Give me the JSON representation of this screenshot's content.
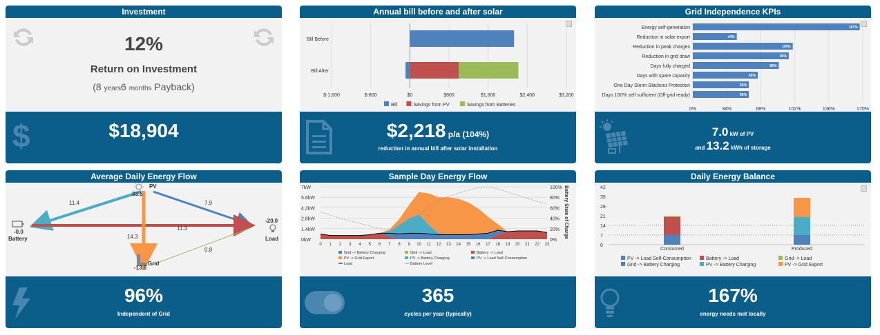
{
  "investment": {
    "title": "Investment",
    "percent": "12%",
    "label": "Return on Investment",
    "payback": {
      "open": "(8 ",
      "years_unit": "years",
      "months_num": "6 ",
      "months_unit": "months",
      "close": " Payback)"
    },
    "footer_value": "$18,904"
  },
  "annual_bill": {
    "title": "Annual bill before and after solar",
    "footer_value": "$2,218",
    "footer_suffix": " p/a (104%)",
    "footer_caption": "reduction in annual bill after solar installation"
  },
  "kpis": {
    "title": "Grid Independence KPIs",
    "footer_line1_value": "7.0",
    "footer_line1_unit": " kW of PV",
    "footer_line2_pre": "and ",
    "footer_line2_value": "13.2",
    "footer_line2_unit": " kWh of storage"
  },
  "energy_flow": {
    "title": "Average Daily Energy Flow",
    "nodes": {
      "pv": "PV",
      "battery": "Battery",
      "load": "Load",
      "grid": "Grid"
    },
    "node_values": {
      "pv": "33.5",
      "battery": "-0.0",
      "load": "-20.0",
      "grid": "-13.5"
    },
    "edges": {
      "pv_battery": "11.4",
      "pv_load": "7.9",
      "pv_grid": "14.3",
      "battery_load": "11.3",
      "grid_load": "0.8"
    },
    "footer_value": "96%",
    "footer_caption": "Independent of Grid"
  },
  "sample_day": {
    "title": "Sample Day Energy Flow",
    "right_axis_label": "Battery State of Charge",
    "footer_value": "365",
    "footer_caption": "cycles per year (typically)"
  },
  "balance": {
    "title": "Daily Energy Balance",
    "footer_value": "167%",
    "footer_caption": "energy needs met locally"
  },
  "colors": {
    "header": "#0b5d8a",
    "blue": "#4f81bd",
    "red": "#c0504d",
    "green": "#9bbb59",
    "orange": "#f79646",
    "teal": "#4bacc6"
  },
  "chart_data": [
    {
      "type": "bar",
      "title": "Annual bill before and after solar",
      "orientation": "horizontal",
      "categories": [
        "Bill Before",
        "Bill After"
      ],
      "series": [
        {
          "name": "Bill",
          "values": [
            2130,
            -88
          ]
        },
        {
          "name": "Savings from PV",
          "values": [
            0,
            1000
          ]
        },
        {
          "name": "Savings from Batteries",
          "values": [
            0,
            1218
          ]
        }
      ],
      "xlim": [
        -1600,
        3200
      ],
      "xticks": [
        "$-1,600",
        "$-800",
        "$0",
        "$800",
        "$1,600",
        "$2,400",
        "$3,200"
      ],
      "legend": "bottom"
    },
    {
      "type": "bar",
      "title": "Grid Independence KPIs",
      "orientation": "horizontal",
      "categories": [
        "Energy self-generation",
        "Reduction in solar export",
        "Reduction in peak charges",
        "Reduction in grid draw",
        "Days fully charged",
        "Days with spare capacity",
        "One Day Storm Blackout Protection",
        "Days 100% self sufficient (Off-grid ready)"
      ],
      "values": [
        167,
        44,
        100,
        96,
        86,
        65,
        56,
        56
      ],
      "value_labels": [
        "167%",
        "44%",
        "100%",
        "96%",
        "86%",
        "65%",
        "56%",
        "56%"
      ],
      "xlim": [
        0,
        170
      ],
      "xticks": [
        "0%",
        "34%",
        "68%",
        "102%",
        "136%",
        "170%"
      ]
    },
    {
      "type": "area",
      "title": "Sample Day Energy Flow",
      "x": [
        0,
        1,
        2,
        3,
        4,
        5,
        6,
        7,
        8,
        9,
        10,
        11,
        12,
        13,
        14,
        15,
        16,
        17,
        18,
        19,
        20,
        21,
        22,
        23
      ],
      "y_left_ticks": [
        "7kW",
        "5.6kW",
        "4.2kW",
        "2.8kW",
        "1.4kW",
        "0kW"
      ],
      "y_right_ticks": [
        "100%",
        "80%",
        "60%",
        "40%",
        "20%",
        "0%"
      ],
      "series": [
        {
          "name": "Grid -> Battery Charging",
          "values": [
            0,
            0,
            0,
            0,
            0,
            0,
            0,
            0,
            0,
            0,
            0,
            0,
            0,
            0,
            0,
            0,
            0,
            0,
            0,
            0,
            0,
            0,
            0,
            0
          ]
        },
        {
          "name": "Grid -> Load",
          "values": [
            0,
            0,
            0,
            0,
            0,
            0,
            0,
            0,
            0,
            0,
            0,
            0,
            0,
            0,
            0,
            0,
            0,
            0,
            0,
            0,
            0,
            0,
            0,
            0
          ]
        },
        {
          "name": "Battery -> Load",
          "values": [
            0.7,
            0.5,
            0.5,
            0.5,
            0.5,
            0.6,
            0.8,
            0.3,
            0,
            0,
            0,
            0,
            0,
            0,
            0,
            0,
            0,
            0,
            0.6,
            1.0,
            1.1,
            1.1,
            1.1,
            0.9
          ]
        },
        {
          "name": "PV -> Grid Export",
          "values": [
            0,
            0,
            0,
            0,
            0,
            0,
            0,
            0.2,
            0.8,
            1.8,
            3.0,
            4.2,
            4.8,
            5.0,
            4.8,
            4.3,
            3.4,
            2.2,
            0.8,
            0,
            0,
            0,
            0,
            0
          ]
        },
        {
          "name": "PV -> Battery Charging",
          "values": [
            0,
            0,
            0,
            0,
            0,
            0,
            0,
            0.4,
            1.2,
            2.0,
            2.5,
            1.2,
            0.2,
            0,
            0,
            0,
            0,
            0,
            0,
            0,
            0,
            0,
            0,
            0
          ]
        },
        {
          "name": "PV -> Load Self-Consumption",
          "values": [
            0,
            0,
            0,
            0,
            0,
            0,
            0,
            0.4,
            0.7,
            0.8,
            0.8,
            0.7,
            0.6,
            0.6,
            0.6,
            0.6,
            0.7,
            0.8,
            0.6,
            0,
            0,
            0,
            0,
            0
          ]
        },
        {
          "name": "Load",
          "values": [
            0.7,
            0.5,
            0.5,
            0.5,
            0.5,
            0.6,
            0.8,
            0.8,
            0.7,
            0.8,
            0.8,
            0.7,
            0.6,
            0.6,
            0.6,
            0.6,
            0.7,
            0.8,
            1.2,
            1.0,
            1.1,
            1.1,
            1.1,
            0.9
          ]
        },
        {
          "name": "Battery Level",
          "values": [
            52,
            46,
            40,
            35,
            30,
            25,
            20,
            18,
            20,
            30,
            45,
            62,
            75,
            82,
            88,
            94,
            98,
            100,
            96,
            90,
            84,
            78,
            72,
            68
          ]
        }
      ],
      "legend": "bottom"
    },
    {
      "type": "bar",
      "title": "Daily Energy Balance",
      "stacked": true,
      "categories": [
        "Consumed",
        "Produced"
      ],
      "series": [
        {
          "name": "PV -> Load Self-Consumption",
          "values": [
            7,
            7
          ]
        },
        {
          "name": "Grid -> Battery Charging",
          "values": [
            0,
            0
          ]
        },
        {
          "name": "Battery -> Load",
          "values": [
            13,
            0
          ]
        },
        {
          "name": "PV -> Battery Charging",
          "values": [
            0,
            13
          ]
        },
        {
          "name": "Grid -> Load",
          "values": [
            0.8,
            0
          ]
        },
        {
          "name": "PV -> Grid Export",
          "values": [
            0,
            14
          ]
        }
      ],
      "ylim": [
        0,
        42
      ],
      "yticks": [
        "42",
        "35",
        "28",
        "21",
        "14",
        "7",
        "0"
      ],
      "legend": "bottom"
    }
  ]
}
